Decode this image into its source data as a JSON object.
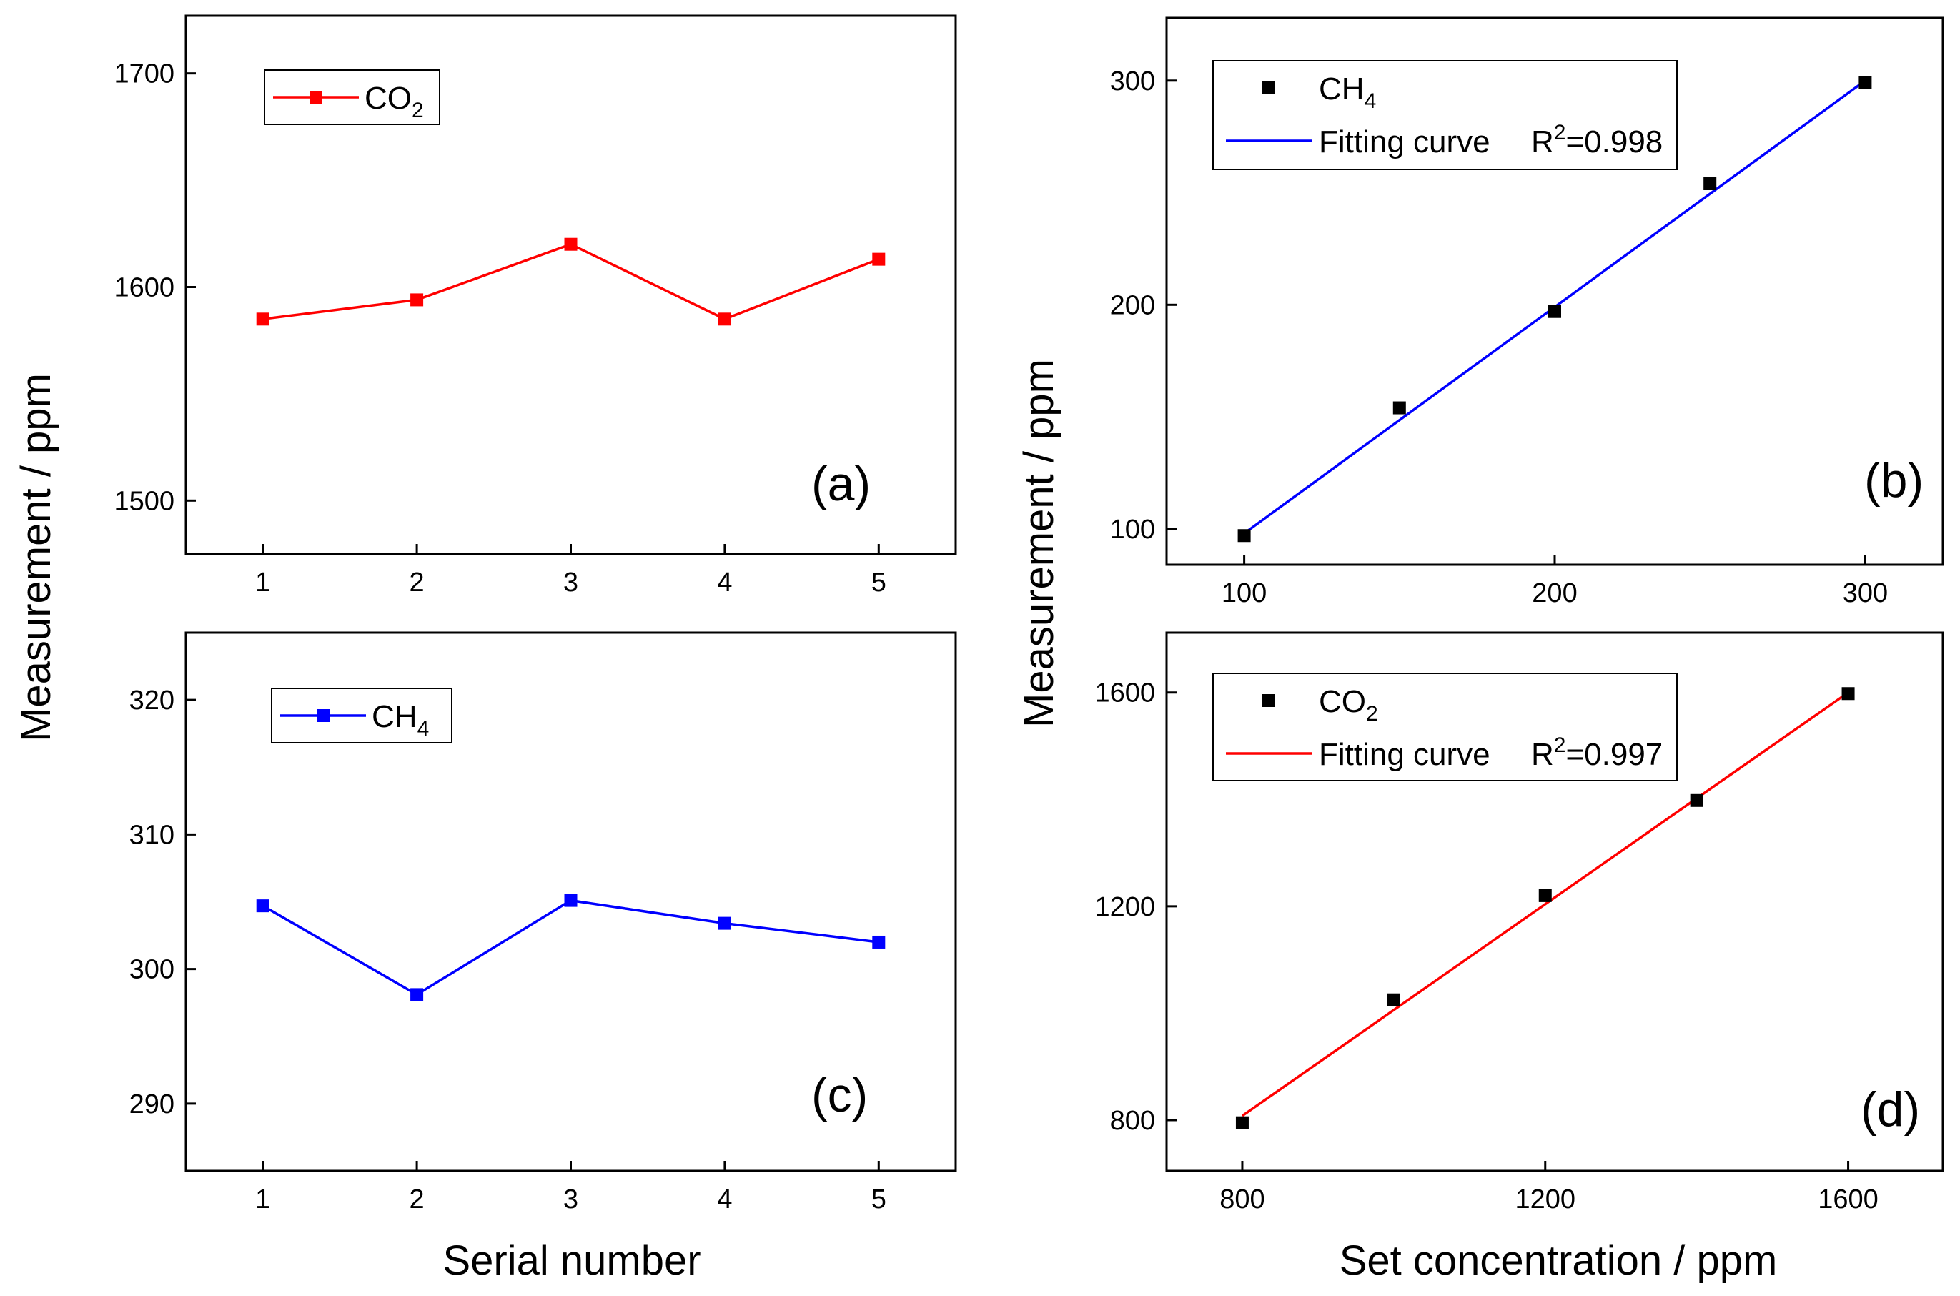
{
  "colors": {
    "co2": "#ff0000",
    "ch4": "#0000ff",
    "points": "#000000",
    "axis": "#000000"
  },
  "chart_data": [
    {
      "id": "a",
      "type": "line",
      "panel_label": "(a)",
      "x": [
        1,
        2,
        3,
        4,
        5
      ],
      "series": [
        {
          "name": "CO",
          "name_sub": "2",
          "values": [
            1585,
            1594,
            1620,
            1585,
            1613
          ],
          "color": "#ff0000",
          "marker": "square"
        }
      ],
      "xlim": [
        0.5,
        5.5
      ],
      "ylim": [
        1475,
        1727
      ],
      "xticks": [
        1,
        2,
        3,
        4,
        5
      ],
      "yticks": [
        1500,
        1600,
        1700
      ],
      "grid": false,
      "legend": "top-left"
    },
    {
      "id": "b",
      "type": "scatter",
      "panel_label": "(b)",
      "x": [
        100,
        150,
        200,
        250,
        300
      ],
      "series": [
        {
          "name": "CH",
          "name_sub": "4",
          "values": [
            97,
            154,
            197,
            254,
            299
          ],
          "color": "#000000",
          "marker": "square"
        }
      ],
      "fit": {
        "label": "Fitting curve",
        "r2_prefix": "R",
        "r2_sup": "2",
        "r2_value": "=0.998",
        "x": [
          100,
          300
        ],
        "y": [
          98,
          300
        ],
        "color": "#0000ff"
      },
      "xlim": [
        75,
        325
      ],
      "ylim": [
        84,
        328
      ],
      "xticks": [
        100,
        200,
        300
      ],
      "yticks": [
        100,
        200,
        300
      ],
      "grid": false,
      "legend": "top-left"
    },
    {
      "id": "c",
      "type": "line",
      "panel_label": "(c)",
      "x": [
        1,
        2,
        3,
        4,
        5
      ],
      "series": [
        {
          "name": "CH",
          "name_sub": "4",
          "values": [
            304.7,
            298.1,
            305.1,
            303.4,
            302.0
          ],
          "color": "#0000ff",
          "marker": "square"
        }
      ],
      "xlim": [
        0.5,
        5.5
      ],
      "ylim": [
        285,
        325
      ],
      "xticks": [
        1,
        2,
        3,
        4,
        5
      ],
      "yticks": [
        290,
        300,
        310,
        320
      ],
      "grid": false,
      "legend": "top-left"
    },
    {
      "id": "d",
      "type": "scatter",
      "panel_label": "(d)",
      "x": [
        800,
        1000,
        1200,
        1400,
        1600
      ],
      "series": [
        {
          "name": "CO",
          "name_sub": "2",
          "values": [
            795,
            1025,
            1220,
            1398,
            1598
          ],
          "color": "#000000",
          "marker": "square"
        }
      ],
      "fit": {
        "label": "Fitting curve",
        "r2_prefix": "R",
        "r2_sup": "2",
        "r2_value": "=0.997",
        "x": [
          800,
          1600
        ],
        "y": [
          808,
          1600
        ],
        "color": "#ff0000"
      },
      "xlim": [
        700,
        1725
      ],
      "ylim": [
        705,
        1712
      ],
      "xticks": [
        800,
        1200,
        1600
      ],
      "yticks": [
        800,
        1200,
        1600
      ],
      "grid": false,
      "legend": "top-left"
    }
  ],
  "labels": {
    "left_ylabel": "Measurement / ppm",
    "left_xlabel": "Serial number",
    "right_ylabel": "Measurement / ppm",
    "right_xlabel": "Set concentration / ppm"
  }
}
